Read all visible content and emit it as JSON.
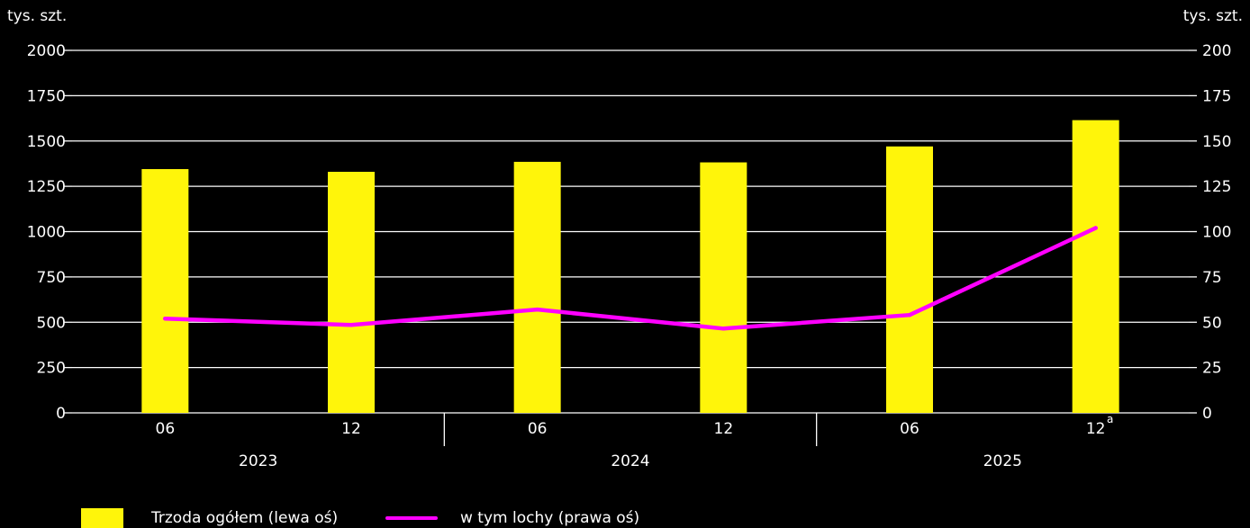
{
  "chart_data": {
    "type": "bar+line",
    "left_axis_unit": "tys. szt.",
    "right_axis_unit": "tys. szt.",
    "categories": [
      "06",
      "12",
      "06",
      "12",
      "06",
      "12"
    ],
    "category_note": [
      "",
      "",
      "",
      "",
      "",
      "a"
    ],
    "years": [
      "2023",
      "2024",
      "2025"
    ],
    "series": [
      {
        "name": "Trzoda ogółem (lewa oś)",
        "type": "bar",
        "axis": "left",
        "values": [
          1345,
          1330,
          1385,
          1382,
          1470,
          1615
        ],
        "color": "#fff50a"
      },
      {
        "name": "w tym lochy (prawa oś)",
        "type": "line",
        "axis": "right",
        "values": [
          52,
          48.5,
          57,
          46.5,
          54,
          102
        ],
        "color": "#ff00ff"
      }
    ],
    "left_ylim": [
      0,
      2000
    ],
    "left_ticks": [
      "0",
      "250",
      "500",
      "750",
      "1000",
      "1250",
      "1500",
      "1750",
      "2000"
    ],
    "right_ylim": [
      0,
      200
    ],
    "right_ticks": [
      "0",
      "25",
      "50",
      "75",
      "100",
      "125",
      "150",
      "175",
      "200"
    ],
    "grid": true,
    "legend_position": "bottom-left",
    "background": "#000000",
    "grid_color": "#ffffff"
  }
}
